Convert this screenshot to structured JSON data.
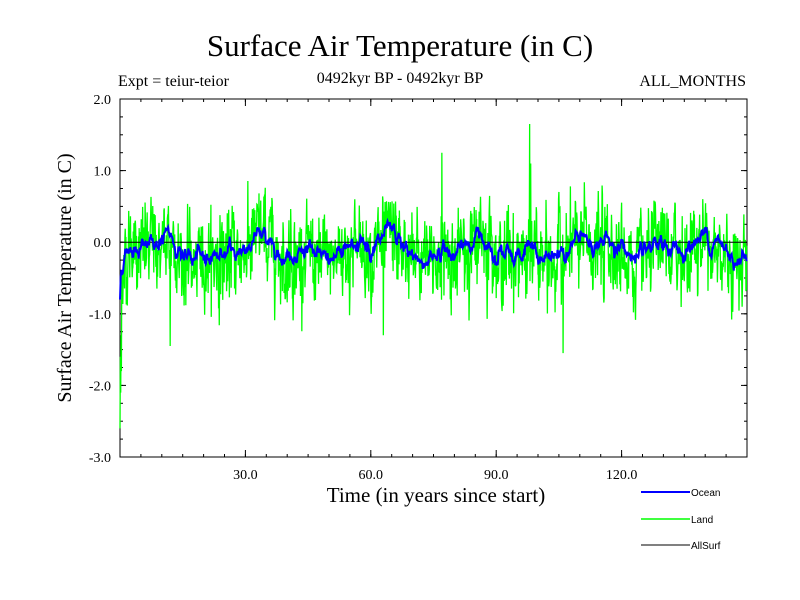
{
  "chart_data": {
    "type": "line",
    "title": "Surface Air Temperature (in C)",
    "subtitle_left": "Expt = teiur-teior",
    "subtitle_center": "0492kyr BP - 0492kyr BP",
    "subtitle_right": "ALL_MONTHS",
    "xlabel": "Time (in years since start)",
    "ylabel": "Surface Air Temperature (in C)",
    "xlim": [
      0,
      150
    ],
    "ylim": [
      -3.0,
      2.0
    ],
    "x_ticks": [
      30,
      60,
      90,
      120
    ],
    "x_tick_labels": [
      "30.0",
      "60.0",
      "90.0",
      "120.0"
    ],
    "y_ticks": [
      2.0,
      1.0,
      0.0,
      -1.0,
      -2.0,
      -3.0
    ],
    "y_tick_labels": [
      "2.0",
      "1.0",
      "0.0",
      "-1.0",
      "-2.0",
      "-3.0"
    ],
    "zero_line": 0.0,
    "legend_position": "bottom-right",
    "series": [
      {
        "name": "Land",
        "color": "#00ff00",
        "sampling": "approx. monthly noise sampled at about 0.25 year, values estimated from figure envelope",
        "values_summary": {
          "min": -2.6,
          "max": 1.65,
          "mean": -0.15,
          "start": -2.6
        }
      },
      {
        "name": "Ocean",
        "color": "#0000ff",
        "sampling": "smooth variability around -0.1",
        "values_summary": {
          "min": -0.75,
          "max": 0.28,
          "mean": -0.1
        }
      },
      {
        "name": "AllSurf",
        "color": "#000000",
        "values_summary": {
          "min": 0.0,
          "max": 0.0,
          "mean": 0.0
        }
      }
    ],
    "legend": [
      "Ocean",
      "Land",
      "AllSurf"
    ]
  }
}
